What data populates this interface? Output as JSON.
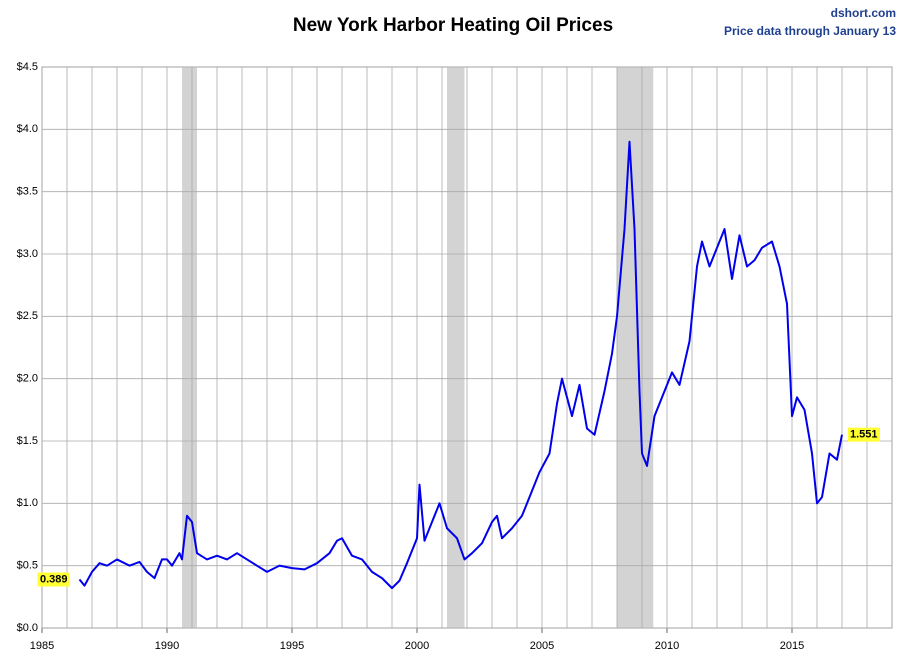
{
  "chart_data": {
    "type": "line",
    "title": "New York Harbor Heating Oil Prices",
    "source": "dshort.com",
    "subtitle": "Price data through January 13",
    "xlim": [
      1985,
      2019
    ],
    "xticks": [
      1985,
      1990,
      1995,
      2000,
      2005,
      2010,
      2015
    ],
    "x_minor_ticks": [
      1986,
      1987,
      1988,
      1989,
      1991,
      1992,
      1993,
      1994,
      1996,
      1997,
      1998,
      1999,
      2001,
      2002,
      2003,
      2004,
      2006,
      2007,
      2008,
      2009,
      2011,
      2012,
      2013,
      2014,
      2016,
      2017,
      2018,
      2019
    ],
    "ylim": [
      0,
      4.5
    ],
    "yticks": [
      {
        "value": 0,
        "label": "$0.0"
      },
      {
        "value": 0.5,
        "label": "$0.5"
      },
      {
        "value": 1,
        "label": "$1.0"
      },
      {
        "value": 1.5,
        "label": "$1.5"
      },
      {
        "value": 2,
        "label": "$2.0"
      },
      {
        "value": 2.5,
        "label": "$2.5"
      },
      {
        "value": 3,
        "label": "$3.0"
      },
      {
        "value": 3.5,
        "label": "$3.5"
      },
      {
        "value": 4,
        "label": "$4.0"
      },
      {
        "value": 4.5,
        "label": "$4.5"
      }
    ],
    "grid": true,
    "recessions": [
      [
        1990.6,
        1991.2
      ],
      [
        2001.2,
        2001.9
      ],
      [
        2008.0,
        2009.45
      ]
    ],
    "recession_color": "#d3d3d3",
    "series": [
      {
        "name": "Heating Oil",
        "color": "#0000ee",
        "x": [
          1986.5,
          1986.7,
          1987.0,
          1987.3,
          1987.6,
          1988.0,
          1988.5,
          1988.9,
          1989.2,
          1989.5,
          1989.8,
          1990.0,
          1990.2,
          1990.5,
          1990.6,
          1990.8,
          1991.0,
          1991.2,
          1991.6,
          1992.0,
          1992.4,
          1992.8,
          1993.2,
          1993.6,
          1994.0,
          1994.5,
          1995.0,
          1995.5,
          1996.0,
          1996.5,
          1996.8,
          1997.0,
          1997.4,
          1997.8,
          1998.2,
          1998.6,
          1999.0,
          1999.3,
          1999.6,
          2000.0,
          2000.1,
          2000.3,
          2000.6,
          2000.9,
          2001.2,
          2001.6,
          2001.9,
          2002.2,
          2002.6,
          2003.0,
          2003.2,
          2003.4,
          2003.8,
          2004.2,
          2004.6,
          2004.9,
          2005.3,
          2005.6,
          2005.8,
          2006.2,
          2006.5,
          2006.8,
          2007.1,
          2007.5,
          2007.8,
          2008.0,
          2008.3,
          2008.5,
          2008.7,
          2008.9,
          2009.0,
          2009.2,
          2009.5,
          2009.8,
          2010.2,
          2010.5,
          2010.9,
          2011.2,
          2011.4,
          2011.7,
          2012.0,
          2012.3,
          2012.6,
          2012.9,
          2013.2,
          2013.5,
          2013.8,
          2014.2,
          2014.5,
          2014.8,
          2015.0,
          2015.2,
          2015.5,
          2015.8,
          2016.0,
          2016.2,
          2016.5,
          2016.8,
          2017.0
        ],
        "values": [
          0.389,
          0.34,
          0.45,
          0.52,
          0.5,
          0.55,
          0.5,
          0.53,
          0.45,
          0.4,
          0.55,
          0.55,
          0.5,
          0.6,
          0.55,
          0.9,
          0.85,
          0.6,
          0.55,
          0.58,
          0.55,
          0.6,
          0.55,
          0.5,
          0.45,
          0.5,
          0.48,
          0.47,
          0.52,
          0.6,
          0.7,
          0.72,
          0.58,
          0.55,
          0.45,
          0.4,
          0.32,
          0.38,
          0.52,
          0.72,
          1.15,
          0.7,
          0.85,
          1.0,
          0.8,
          0.72,
          0.55,
          0.6,
          0.68,
          0.85,
          0.9,
          0.72,
          0.8,
          0.9,
          1.1,
          1.25,
          1.4,
          1.8,
          2.0,
          1.7,
          1.95,
          1.6,
          1.55,
          1.9,
          2.2,
          2.5,
          3.2,
          3.9,
          3.2,
          1.9,
          1.4,
          1.3,
          1.7,
          1.85,
          2.05,
          1.95,
          2.3,
          2.9,
          3.1,
          2.9,
          3.05,
          3.2,
          2.8,
          3.15,
          2.9,
          2.95,
          3.05,
          3.1,
          2.9,
          2.6,
          1.7,
          1.85,
          1.75,
          1.4,
          1.0,
          1.05,
          1.4,
          1.35,
          1.551
        ]
      }
    ]
  }
}
